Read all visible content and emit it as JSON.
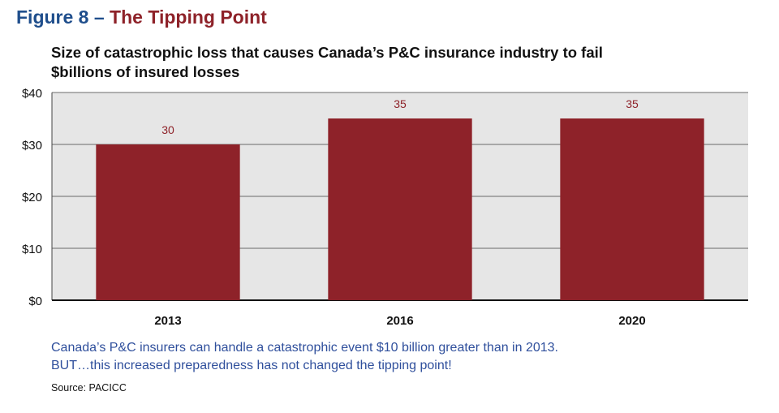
{
  "figure": {
    "number": "Figure 8 –",
    "name": "The Tipping Point"
  },
  "subtitle": {
    "line1": "Size of catastrophic loss that causes Canada’s P&C insurance industry to fail",
    "line2": "$billions of insured losses"
  },
  "note": {
    "line1": "Canada’s P&C insurers can handle a catastrophic event $10 billion greater than in 2013.",
    "line2": "BUT…this increased preparedness has not changed the tipping point!"
  },
  "source": "Source: PACICC",
  "colors": {
    "bar": "#8e2229",
    "plot_background": "#e6e6e6",
    "title_blue": "#1f4e8c",
    "note_blue": "#2f4f9c"
  },
  "chart_data": {
    "type": "bar",
    "title": "Size of catastrophic loss that causes Canada’s P&C insurance industry to fail",
    "ylabel": "$billions of insured losses",
    "categories": [
      "2013",
      "2016",
      "2020"
    ],
    "values": [
      30,
      35,
      35
    ],
    "data_labels": [
      "30",
      "35",
      "35"
    ],
    "yticks": [
      0,
      10,
      20,
      30,
      40
    ],
    "ytick_labels": [
      "$0",
      "$10",
      "$20",
      "$30",
      "$40"
    ],
    "ylim": [
      0,
      40
    ],
    "grid": true,
    "legend": "none"
  }
}
